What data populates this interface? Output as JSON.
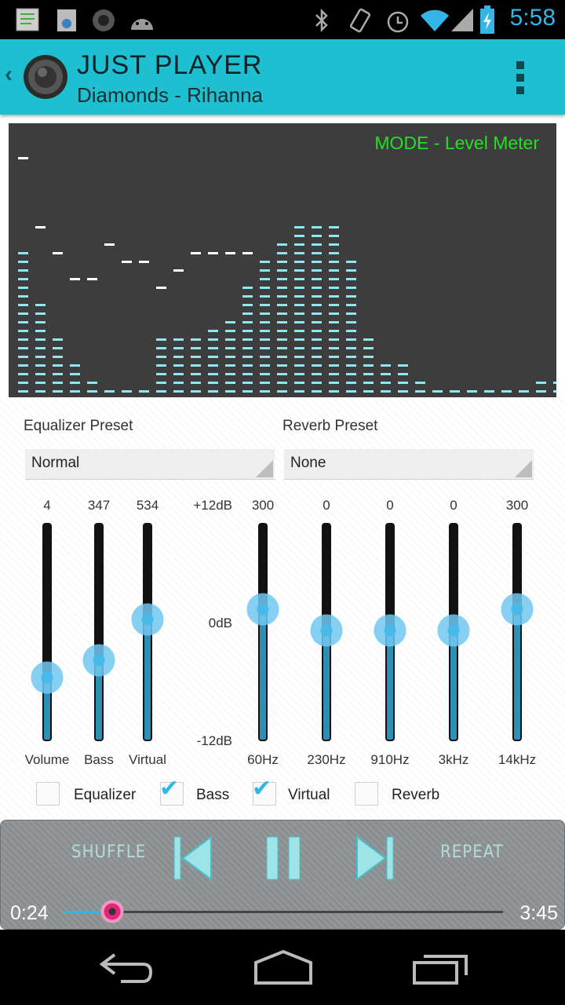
{
  "status": {
    "time": "5:58"
  },
  "app": {
    "title": "JUST PLAYER",
    "subtitle": "Diamonds - Rihanna"
  },
  "visualizer": {
    "mode": "MODE - Level Meter",
    "bar_color": "#8ee8f2",
    "levels": [
      17,
      11,
      7,
      4,
      2,
      1,
      1,
      1,
      7,
      7,
      7,
      8,
      9,
      13,
      16,
      18,
      20,
      20,
      20,
      16,
      7,
      4,
      4,
      2,
      1,
      1,
      1,
      1,
      1,
      1,
      2,
      2
    ],
    "peaks": [
      27,
      19,
      16,
      13,
      13,
      17,
      15,
      15,
      12,
      14,
      16,
      16,
      16,
      16,
      null,
      null,
      null,
      null,
      null,
      null,
      null,
      null,
      null,
      null,
      null,
      1,
      1,
      1,
      1,
      1,
      2,
      2
    ]
  },
  "presets": {
    "equalizer_label": "Equalizer Preset",
    "equalizer_value": "Normal",
    "reverb_label": "Reverb Preset",
    "reverb_value": "None"
  },
  "effects": [
    {
      "label": "Volume",
      "value": "4",
      "level": 0.28
    },
    {
      "label": "Bass",
      "value": "347",
      "level": 0.36
    },
    {
      "label": "Virtual",
      "value": "534",
      "level": 0.55
    }
  ],
  "db_scale": {
    "top": "+12dB",
    "mid": "0dB",
    "bottom": "-12dB"
  },
  "bands": [
    {
      "label": "60Hz",
      "value": "300",
      "level": 0.6
    },
    {
      "label": "230Hz",
      "value": "0",
      "level": 0.5
    },
    {
      "label": "910Hz",
      "value": "0",
      "level": 0.5
    },
    {
      "label": "3kHz",
      "value": "0",
      "level": 0.5
    },
    {
      "label": "14kHz",
      "value": "300",
      "level": 0.6
    }
  ],
  "toggles": [
    {
      "label": "Equalizer",
      "checked": false
    },
    {
      "label": "Bass",
      "checked": true
    },
    {
      "label": "Virtual",
      "checked": true
    },
    {
      "label": "Reverb",
      "checked": false
    }
  ],
  "player": {
    "shuffle": "SHUFFLE",
    "repeat": "REPEAT",
    "current_time": "0:24",
    "total_time": "3:45",
    "progress": 0.11
  }
}
